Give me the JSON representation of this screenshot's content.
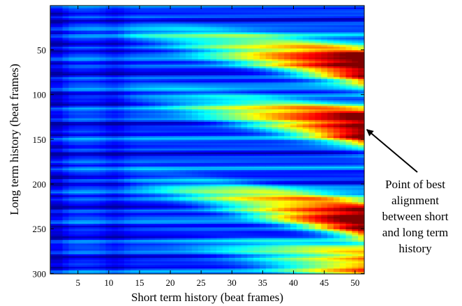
{
  "chart_data": {
    "type": "heatmap",
    "title": "",
    "xlabel": "Short term history (beat frames)",
    "ylabel": "Long term history (beat frames)",
    "xlim": [
      0.5,
      51.5
    ],
    "ylim": [
      0.5,
      300.5
    ],
    "y_reversed": true,
    "xticks": [
      5,
      10,
      15,
      20,
      25,
      30,
      35,
      40,
      45,
      50
    ],
    "yticks": [
      50,
      100,
      150,
      200,
      250,
      300
    ],
    "colormap": "jet",
    "grid": false,
    "legend": "none",
    "ridges": [
      {
        "start_x": 1,
        "start_y": 20,
        "end_x": 51,
        "end_y": 68,
        "peak_value": 1.0
      },
      {
        "start_x": 5,
        "start_y": 95,
        "end_x": 51,
        "end_y": 136,
        "peak_value": 1.0
      },
      {
        "start_x": 3,
        "start_y": 185,
        "end_x": 51,
        "end_y": 240,
        "peak_value": 1.0
      },
      {
        "start_x": 15,
        "start_y": 262,
        "end_x": 51,
        "end_y": 292,
        "peak_value": 0.65
      }
    ],
    "annotations": [
      {
        "text_lines": [
          "Point of best",
          "alignment",
          "between short",
          "and long term",
          "history"
        ],
        "points_to": {
          "x": 51,
          "y": 136
        }
      }
    ]
  }
}
